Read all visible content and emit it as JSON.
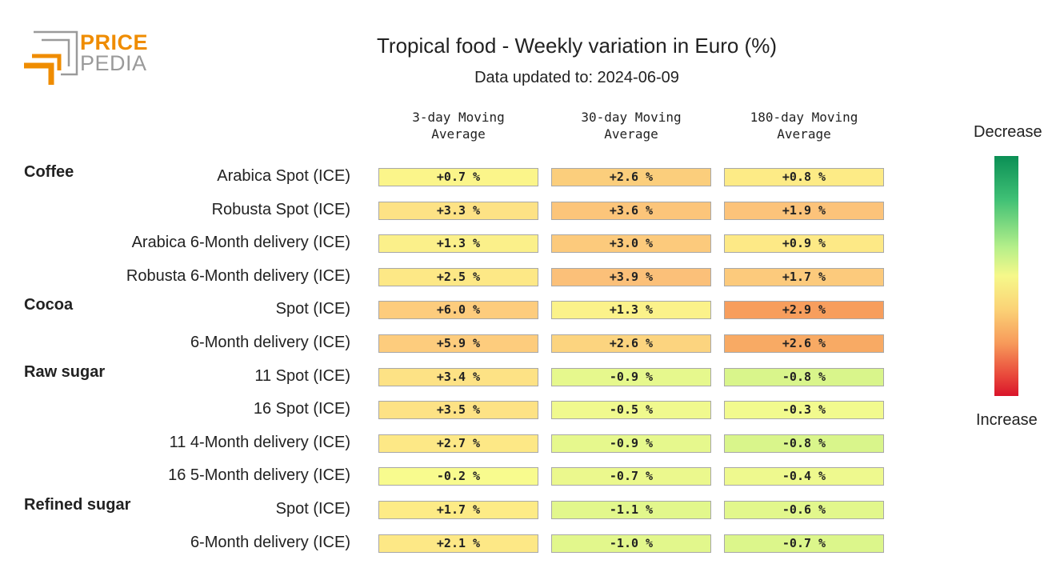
{
  "logo": {
    "line1": "PRICE",
    "line2": "PEDIA",
    "colors": {
      "orange": "#ef8c00",
      "gray": "#9a9a9a"
    }
  },
  "title": "Tropical food - Weekly variation in Euro (%)",
  "subtitle": "Data updated to: 2024-06-09",
  "legend": {
    "top": "Decrease",
    "bottom": "Increase"
  },
  "chart_data": {
    "type": "heatmap",
    "columns": [
      "3-day Moving\nAverage",
      "30-day Moving\nAverage",
      "180-day Moving\nAverage"
    ],
    "groups": [
      "Coffee",
      "Cocoa",
      "Raw sugar",
      "Refined sugar"
    ],
    "rows": [
      {
        "group": "Coffee",
        "label": "Arabica Spot (ICE)",
        "values": [
          "+0.7 %",
          "+2.6 %",
          "+0.8 %"
        ],
        "colors": [
          "#fbf58a",
          "#fbce7c",
          "#fdeb86"
        ]
      },
      {
        "group": "",
        "label": "Robusta Spot (ICE)",
        "values": [
          "+3.3 %",
          "+3.6 %",
          "+1.9 %"
        ],
        "colors": [
          "#fde285",
          "#fcc57a",
          "#fcc37a"
        ]
      },
      {
        "group": "",
        "label": "Arabica 6-Month delivery (ICE)",
        "values": [
          "+1.3 %",
          "+3.0 %",
          "+0.9 %"
        ],
        "colors": [
          "#fbf08a",
          "#fcca7c",
          "#fde986"
        ]
      },
      {
        "group": "",
        "label": "Robusta 6-Month delivery (ICE)",
        "values": [
          "+2.5 %",
          "+3.9 %",
          "+1.7 %"
        ],
        "colors": [
          "#fde886",
          "#fbc079",
          "#fcca7c"
        ]
      },
      {
        "group": "Cocoa",
        "label": "Spot (ICE)",
        "values": [
          "+6.0 %",
          "+1.3 %",
          "+2.9 %"
        ],
        "colors": [
          "#fdcc7d",
          "#fbf28a",
          "#f79e5d"
        ]
      },
      {
        "group": "",
        "label": "6-Month delivery (ICE)",
        "values": [
          "+5.9 %",
          "+2.6 %",
          "+2.6 %"
        ],
        "colors": [
          "#fdcc7d",
          "#fcd47f",
          "#f8aa64"
        ]
      },
      {
        "group": "Raw sugar",
        "label": "11 Spot (ICE)",
        "values": [
          "+3.4 %",
          "-0.9 %",
          "-0.8 %"
        ],
        "colors": [
          "#fde285",
          "#e6f88d",
          "#d9f58b"
        ]
      },
      {
        "group": "",
        "label": "16 Spot (ICE)",
        "values": [
          "+3.5 %",
          "-0.5 %",
          "-0.3 %"
        ],
        "colors": [
          "#fde285",
          "#f0f98e",
          "#f2fa8e"
        ]
      },
      {
        "group": "",
        "label": "11 4-Month delivery (ICE)",
        "values": [
          "+2.7 %",
          "-0.9 %",
          "-0.8 %"
        ],
        "colors": [
          "#fde886",
          "#e6f88d",
          "#d9f58b"
        ]
      },
      {
        "group": "",
        "label": "16 5-Month delivery (ICE)",
        "values": [
          "-0.2 %",
          "-0.7 %",
          "-0.4 %"
        ],
        "colors": [
          "#f8fb8e",
          "#ebf88d",
          "#eef98e"
        ]
      },
      {
        "group": "Refined sugar",
        "label": "Spot (ICE)",
        "values": [
          "+1.7 %",
          "-1.1 %",
          "-0.6 %"
        ],
        "colors": [
          "#fdeb86",
          "#e2f78c",
          "#e2f78c"
        ]
      },
      {
        "group": "",
        "label": "6-Month delivery (ICE)",
        "values": [
          "+2.1 %",
          "-1.0 %",
          "-0.7 %"
        ],
        "colors": [
          "#fde886",
          "#e2f78c",
          "#dcf68b"
        ]
      }
    ],
    "colorscale": [
      "#0b8f55",
      "#b5ef8a",
      "#f6f88a",
      "#fbd276",
      "#f79a5a",
      "#d9142a"
    ]
  }
}
